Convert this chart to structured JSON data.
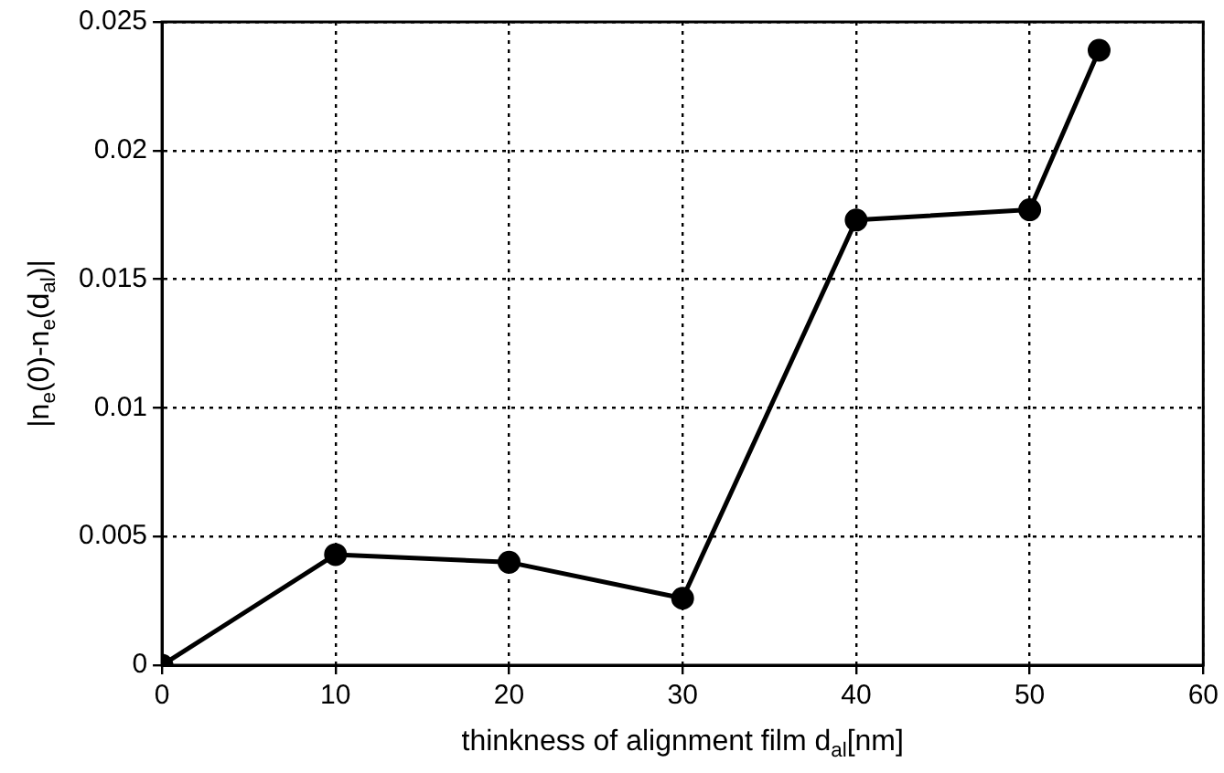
{
  "chart_data": {
    "type": "line",
    "xlabel": "thinkness of alignment film d$_{al}$[nm]",
    "ylabel": "|n$_{e}$(0)-n$_{e}$(d$_{al}$)|",
    "x": [
      0,
      10,
      20,
      30,
      40,
      50,
      54
    ],
    "series": [
      {
        "color": "#000000",
        "values": [
          0,
          0.0043,
          0.004,
          0.0026,
          0.0173,
          0.0177,
          0.0239
        ]
      }
    ],
    "xlim": [
      0,
      60
    ],
    "xticks": [
      0,
      10,
      20,
      30,
      40,
      50,
      60
    ],
    "ylim": [
      0,
      0.025
    ],
    "yticks": [
      0,
      0.005,
      0.01,
      0.015,
      0.02,
      0.025
    ],
    "grid": true,
    "marker": "circle",
    "line_style": "solid"
  }
}
